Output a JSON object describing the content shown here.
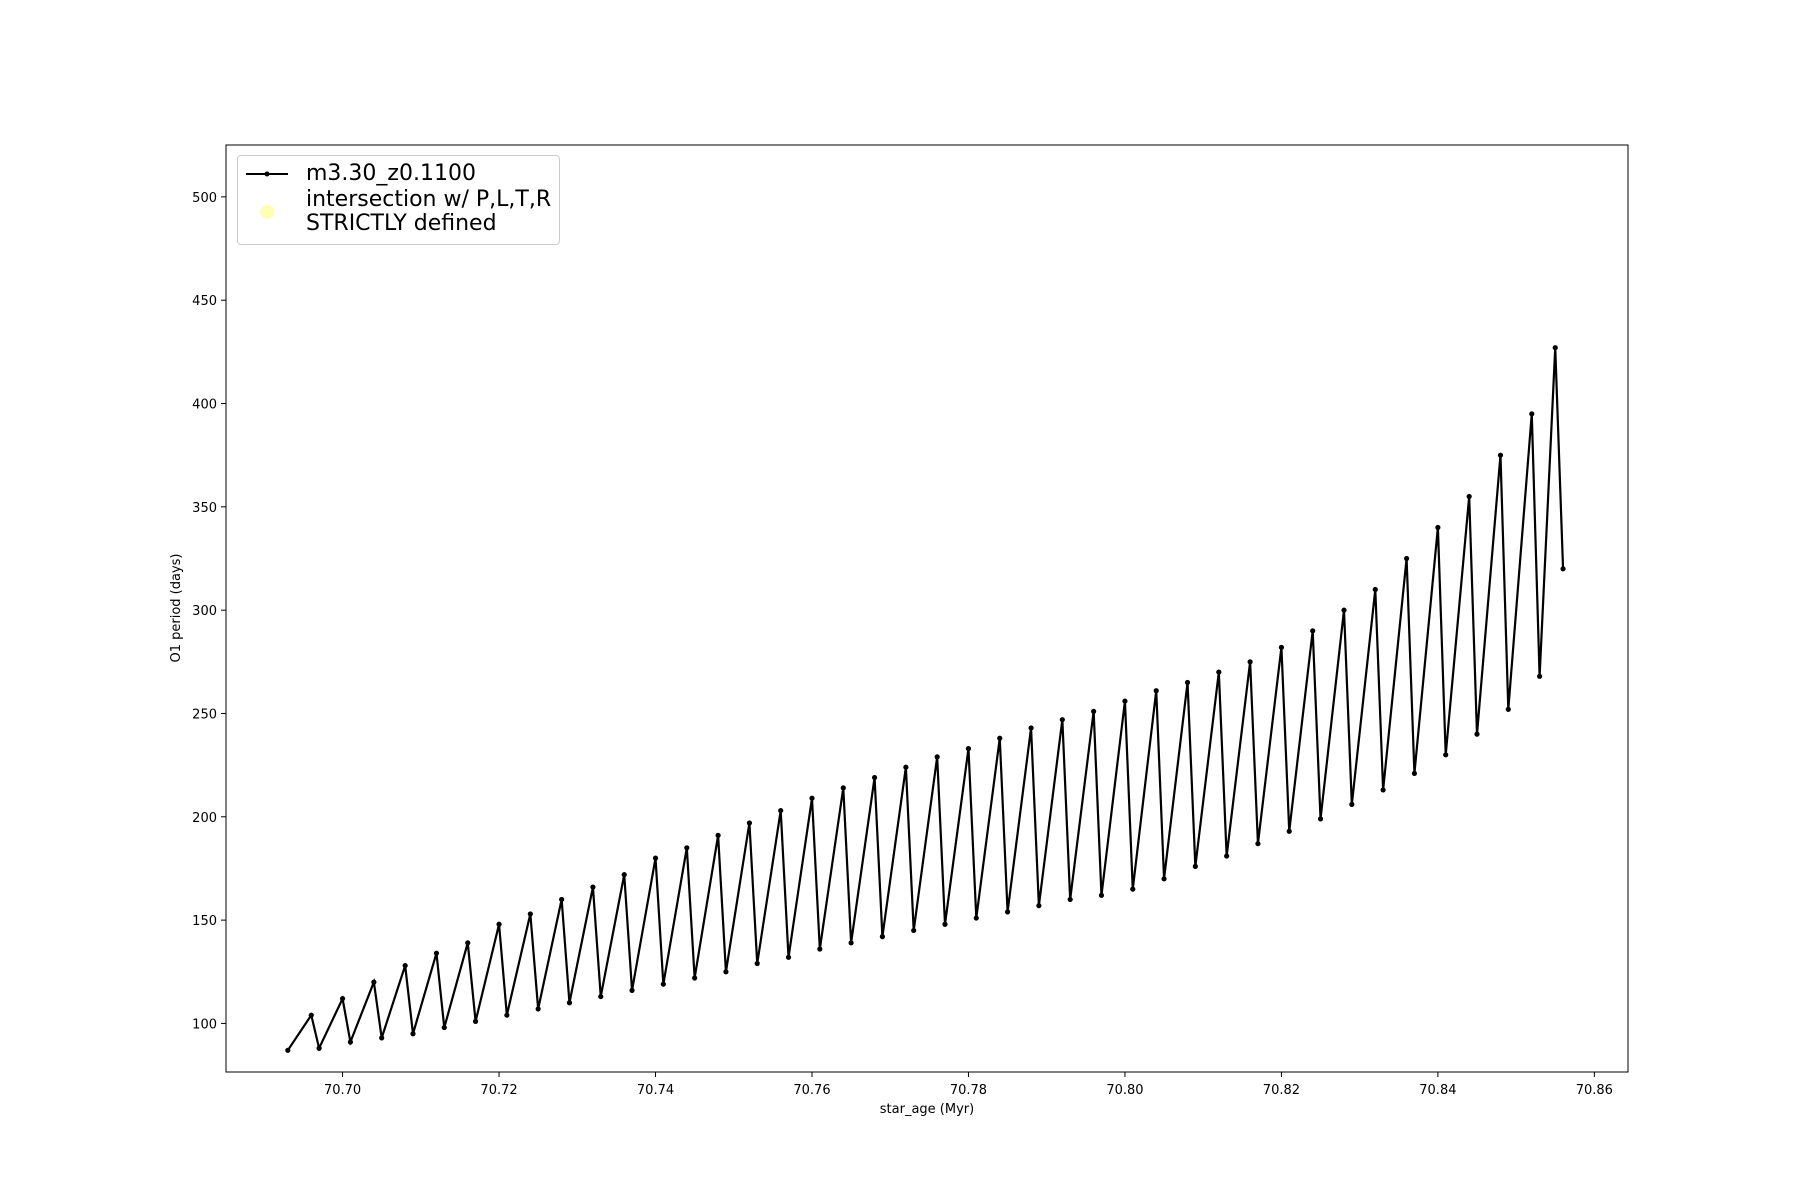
{
  "chart_data": {
    "type": "line",
    "xlabel": "star_age (Myr)",
    "ylabel": "O1 period (days)",
    "xlim": [
      70.6851,
      70.8643
    ],
    "ylim": [
      76.5,
      525.1
    ],
    "xticks": [
      {
        "value": 70.7,
        "label": "70.70"
      },
      {
        "value": 70.72,
        "label": "70.72"
      },
      {
        "value": 70.74,
        "label": "70.74"
      },
      {
        "value": 70.76,
        "label": "70.76"
      },
      {
        "value": 70.78,
        "label": "70.78"
      },
      {
        "value": 70.8,
        "label": "70.80"
      },
      {
        "value": 70.82,
        "label": "70.82"
      },
      {
        "value": 70.84,
        "label": "70.84"
      },
      {
        "value": 70.86,
        "label": "70.86"
      }
    ],
    "yticks": [
      100,
      150,
      200,
      250,
      300,
      350,
      400,
      450,
      500
    ],
    "legend": "upper left",
    "series": [
      {
        "name": "m3.30_z0.1100",
        "color": "#000000",
        "marker": "dot",
        "x": [
          70.693,
          70.696,
          70.697,
          70.7,
          70.701,
          70.704,
          70.705,
          70.708,
          70.709,
          70.712,
          70.713,
          70.716,
          70.717,
          70.72,
          70.721,
          70.724,
          70.725,
          70.728,
          70.729,
          70.732,
          70.733,
          70.736,
          70.737,
          70.74,
          70.741,
          70.744,
          70.745,
          70.748,
          70.749,
          70.752,
          70.753,
          70.756,
          70.757,
          70.76,
          70.761,
          70.764,
          70.765,
          70.768,
          70.769,
          70.772,
          70.773,
          70.776,
          70.777,
          70.78,
          70.781,
          70.784,
          70.785,
          70.788,
          70.789,
          70.792,
          70.793,
          70.796,
          70.797,
          70.8,
          70.801,
          70.804,
          70.805,
          70.808,
          70.809,
          70.812,
          70.813,
          70.816,
          70.817,
          70.82,
          70.821,
          70.824,
          70.825,
          70.828,
          70.829,
          70.832,
          70.833,
          70.836,
          70.837,
          70.84,
          70.841,
          70.844,
          70.845,
          70.848,
          70.849,
          70.852,
          70.853,
          70.855,
          70.856
        ],
        "values": [
          87,
          104,
          88,
          112,
          91,
          120,
          93,
          128,
          95,
          134,
          98,
          139,
          101,
          148,
          104,
          153,
          107,
          160,
          110,
          166,
          113,
          172,
          116,
          180,
          119,
          185,
          122,
          191,
          125,
          197,
          129,
          203,
          132,
          209,
          136,
          214,
          139,
          219,
          142,
          224,
          145,
          229,
          148,
          233,
          151,
          238,
          154,
          243,
          157,
          247,
          160,
          251,
          162,
          256,
          165,
          261,
          170,
          265,
          176,
          270,
          181,
          275,
          187,
          282,
          193,
          290,
          199,
          300,
          206,
          310,
          213,
          325,
          221,
          340,
          230,
          355,
          240,
          375,
          252,
          395,
          268,
          427,
          320
        ]
      },
      {
        "name": "intersection w/ P,L,T,R\nSTRICTLY defined",
        "color": "#ffffb3",
        "marker": "circle",
        "x": [],
        "values": []
      }
    ]
  }
}
